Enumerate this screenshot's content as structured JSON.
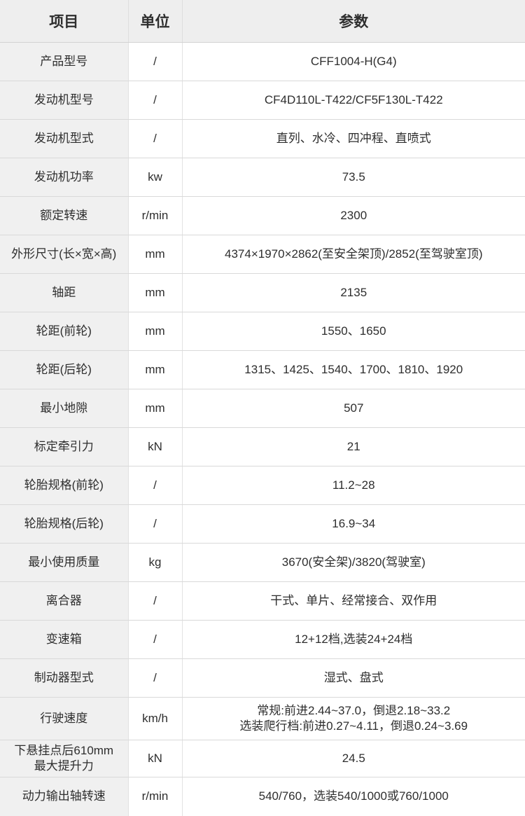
{
  "header": {
    "item": "项目",
    "unit": "单位",
    "value": "参数"
  },
  "rows": [
    {
      "item": "产品型号",
      "unit": "/",
      "value": "CFF1004-H(G4)"
    },
    {
      "item": "发动机型号",
      "unit": "/",
      "value": "CF4D110L-T422/CF5F130L-T422"
    },
    {
      "item": "发动机型式",
      "unit": "/",
      "value": "直列、水冷、四冲程、直喷式"
    },
    {
      "item": "发动机功率",
      "unit": "kw",
      "value": "73.5"
    },
    {
      "item": "额定转速",
      "unit": "r/min",
      "value": "2300"
    },
    {
      "item": "外形尺寸(长×宽×高)",
      "unit": "mm",
      "value": "4374×1970×2862(至安全架顶)/2852(至驾驶室顶)"
    },
    {
      "item": "轴距",
      "unit": "mm",
      "value": "2135"
    },
    {
      "item": "轮距(前轮)",
      "unit": "mm",
      "value": "1550、1650"
    },
    {
      "item": "轮距(后轮)",
      "unit": "mm",
      "value": "1315、1425、1540、1700、1810、1920"
    },
    {
      "item": "最小地隙",
      "unit": "mm",
      "value": "507"
    },
    {
      "item": "标定牵引力",
      "unit": "kN",
      "value": "21"
    },
    {
      "item": "轮胎规格(前轮)",
      "unit": "/",
      "value": "11.2~28"
    },
    {
      "item": "轮胎规格(后轮)",
      "unit": "/",
      "value": "16.9~34"
    },
    {
      "item": "最小使用质量",
      "unit": "kg",
      "value": "3670(安全架)/3820(驾驶室)"
    },
    {
      "item": "离合器",
      "unit": "/",
      "value": "干式、单片、经常接合、双作用"
    },
    {
      "item": "变速箱",
      "unit": "/",
      "value": "12+12档,选装24+24档"
    },
    {
      "item": "制动器型式",
      "unit": "/",
      "value": "湿式、盘式"
    },
    {
      "item": "行驶速度",
      "unit": "km/h",
      "value": "常规:前进2.44~37.0，倒退2.18~33.2\n选装爬行档:前进0.27~4.11，倒退0.24~3.69"
    },
    {
      "item": "下悬挂点后610mm\n最大提升力",
      "unit": "kN",
      "value": "24.5"
    },
    {
      "item": "动力输出轴转速",
      "unit": "r/min",
      "value": "540/760，选装540/1000或760/1000"
    }
  ],
  "colors": {
    "header_bg": "#eeeeee",
    "item_column_bg": "#f0f0f0",
    "horizontal_border": "#d9d9d9",
    "vertical_border": "#e2e2e2",
    "text": "#2e2e2e"
  }
}
